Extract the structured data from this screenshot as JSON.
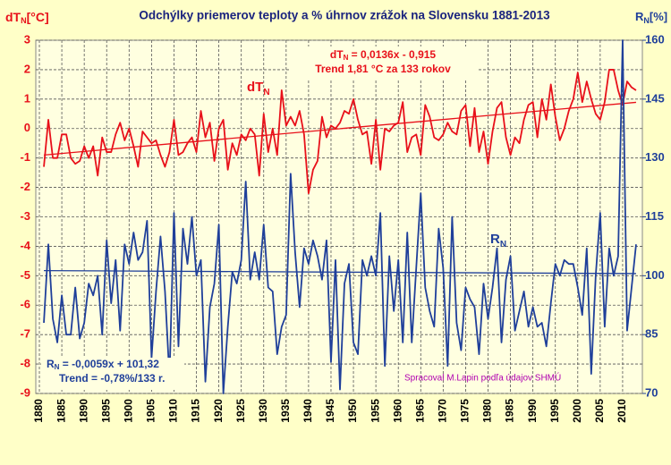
{
  "chart_data": {
    "type": "line",
    "title": "Odchýlky priemerov teploty a % úhrnov zrážok na Slovensku 1881-2013",
    "y_label": {
      "main": "dT",
      "sub": "N",
      "unit": "[°C]"
    },
    "y2_label": {
      "main": "R",
      "sub": "N",
      "unit": "[%]"
    },
    "annotations": {
      "temp_label": {
        "main": "dT",
        "sub": "N"
      },
      "precip_label": {
        "main": "R",
        "sub": "N"
      },
      "temp_equation": {
        "main": "dT",
        "sub": "N",
        "rest": " = 0,0136x - 0,915"
      },
      "temp_trend": "Trend 1,81 °C za 133 rokov",
      "precip_equation": {
        "main": "R",
        "sub": "N",
        "rest": " = -0,0059x + 101,32"
      },
      "precip_trend": "Trend = -0,78%/133 r.",
      "credit": "Spracoval  M.Lapin podľa údajov  SHMÚ"
    },
    "x": [
      1881,
      1882,
      1883,
      1884,
      1885,
      1886,
      1887,
      1888,
      1889,
      1890,
      1891,
      1892,
      1893,
      1894,
      1895,
      1896,
      1897,
      1898,
      1899,
      1900,
      1901,
      1902,
      1903,
      1904,
      1905,
      1906,
      1907,
      1908,
      1909,
      1910,
      1911,
      1912,
      1913,
      1914,
      1915,
      1916,
      1917,
      1918,
      1919,
      1920,
      1921,
      1922,
      1923,
      1924,
      1925,
      1926,
      1927,
      1928,
      1929,
      1930,
      1931,
      1932,
      1933,
      1934,
      1935,
      1936,
      1937,
      1938,
      1939,
      1940,
      1941,
      1942,
      1943,
      1944,
      1945,
      1946,
      1947,
      1948,
      1949,
      1950,
      1951,
      1952,
      1953,
      1954,
      1955,
      1956,
      1957,
      1958,
      1959,
      1960,
      1961,
      1962,
      1963,
      1964,
      1965,
      1966,
      1967,
      1968,
      1969,
      1970,
      1971,
      1972,
      1973,
      1974,
      1975,
      1976,
      1977,
      1978,
      1979,
      1980,
      1981,
      1982,
      1983,
      1984,
      1985,
      1986,
      1987,
      1988,
      1989,
      1990,
      1991,
      1992,
      1993,
      1994,
      1995,
      1996,
      1997,
      1998,
      1999,
      2000,
      2001,
      2002,
      2003,
      2004,
      2005,
      2006,
      2007,
      2008,
      2009,
      2010,
      2011,
      2012,
      2013
    ],
    "series": [
      {
        "color": "#e8101a",
        "axis": "y",
        "values": [
          -1.3,
          0.3,
          -1.0,
          -1.0,
          -0.2,
          -0.2,
          -1.0,
          -1.2,
          -1.1,
          -0.6,
          -1.0,
          -0.6,
          -1.6,
          -0.3,
          -0.8,
          -0.8,
          -0.2,
          0.2,
          -0.4,
          0.0,
          -0.6,
          -1.3,
          -0.1,
          -0.3,
          -0.5,
          -0.4,
          -0.9,
          -1.3,
          -0.8,
          0.3,
          -0.9,
          -0.8,
          -0.5,
          -0.3,
          -0.8,
          0.6,
          -0.3,
          0.2,
          -1.1,
          0.0,
          0.3,
          -1.4,
          -0.5,
          -0.9,
          -0.2,
          -0.4,
          0.0,
          -0.2,
          -1.6,
          0.5,
          -0.8,
          0.0,
          -0.9,
          1.3,
          0.1,
          0.4,
          0.1,
          0.6,
          -0.2,
          -2.2,
          -1.4,
          -1.1,
          0.4,
          -0.3,
          0.1,
          0.0,
          0.2,
          0.6,
          0.5,
          1.0,
          0.3,
          -0.2,
          -0.1,
          -1.2,
          0.3,
          -1.4,
          0.0,
          -0.1,
          0.1,
          0.2,
          0.9,
          -0.8,
          -0.3,
          -0.2,
          -0.9,
          0.8,
          0.4,
          -0.3,
          -0.4,
          -0.2,
          0.2,
          -0.1,
          -0.2,
          0.6,
          0.8,
          -0.6,
          0.7,
          -0.8,
          -0.1,
          -1.2,
          -0.1,
          0.7,
          0.9,
          -0.3,
          -0.9,
          -0.3,
          -0.5,
          0.3,
          0.8,
          0.9,
          -0.3,
          1.0,
          0.3,
          1.5,
          0.4,
          -0.4,
          0.0,
          0.6,
          1.0,
          1.9,
          0.9,
          1.6,
          1.0,
          0.5,
          0.3,
          0.9,
          2.0,
          2.0,
          1.3,
          0.8,
          1.6,
          1.4,
          1.3
        ]
      },
      {
        "color": "#1f3f9a",
        "axis": "y2",
        "values": [
          88,
          108,
          89,
          83,
          95,
          85,
          85,
          97,
          84,
          88,
          98,
          95,
          100,
          85,
          109,
          93,
          104,
          86,
          108,
          103,
          111,
          104,
          106,
          114,
          79,
          96,
          110,
          96,
          74,
          116,
          82,
          112,
          103,
          115,
          100,
          104,
          73,
          92,
          98,
          113,
          70,
          87,
          101,
          98,
          104,
          124,
          99,
          106,
          99,
          113,
          97,
          96,
          80,
          87,
          90,
          126,
          106,
          92,
          107,
          103,
          109,
          105,
          99,
          109,
          78,
          104,
          71,
          98,
          103,
          83,
          80,
          104,
          100,
          105,
          100,
          116,
          77,
          105,
          91,
          104,
          83,
          111,
          83,
          102,
          121,
          97,
          91,
          87,
          112,
          102,
          77,
          115,
          88,
          81,
          97,
          94,
          92,
          80,
          98,
          89,
          97,
          107,
          83,
          99,
          105,
          86,
          91,
          96,
          87,
          92,
          87,
          88,
          82,
          93,
          103,
          100,
          104,
          103,
          103,
          97,
          90,
          107,
          75,
          100,
          116,
          87,
          107,
          100,
          105,
          160,
          86,
          97,
          108
        ]
      }
    ],
    "trends": [
      {
        "color": "#e8101a",
        "axis": "y",
        "x": [
          1881,
          2013
        ],
        "values": [
          -0.9,
          0.89
        ]
      },
      {
        "color": "#1f3f9a",
        "axis": "y2",
        "x": [
          1881,
          2013
        ],
        "values": [
          101.3,
          100.54
        ]
      }
    ],
    "xlim": [
      1879.2,
      2014.4
    ],
    "xticks": [
      1880,
      1885,
      1890,
      1895,
      1900,
      1905,
      1910,
      1915,
      1920,
      1925,
      1930,
      1935,
      1940,
      1945,
      1950,
      1955,
      1960,
      1965,
      1970,
      1975,
      1980,
      1985,
      1990,
      1995,
      2000,
      2005,
      2010
    ],
    "ylim": [
      -9,
      3
    ],
    "yticks": [
      3,
      2,
      1,
      0,
      -1,
      -2,
      -3,
      -4,
      -5,
      -6,
      -7,
      -8,
      -9
    ],
    "y2lim": [
      70,
      160
    ],
    "y2ticks": [
      160,
      145,
      130,
      115,
      100,
      85,
      70
    ],
    "grid": true
  }
}
